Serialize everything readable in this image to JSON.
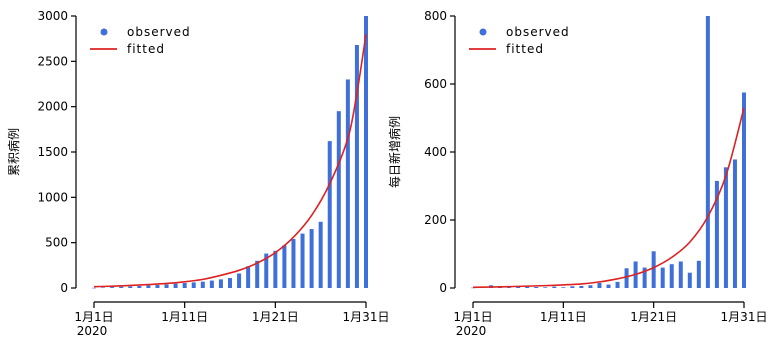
{
  "chart_data": [
    {
      "type": "bar",
      "ylabel": "累积病例",
      "ylim": [
        0,
        3000
      ],
      "yticks": [
        0,
        500,
        1000,
        1500,
        2000,
        2500,
        3000
      ],
      "xticks": [
        {
          "day": 1,
          "label": "1月1日",
          "sublabel": "2020"
        },
        {
          "day": 11,
          "label": "1月11日",
          "sublabel": ""
        },
        {
          "day": 21,
          "label": "1月21日",
          "sublabel": ""
        },
        {
          "day": 31,
          "label": "1月31日",
          "sublabel": ""
        }
      ],
      "legend": {
        "position": "top-left",
        "entries": [
          {
            "label": "observed",
            "kind": "marker"
          },
          {
            "label": "fitted",
            "kind": "line"
          }
        ]
      },
      "colors": {
        "bars": "#3f6fd8",
        "fit": "#dd2222"
      },
      "series": [
        {
          "name": "observed",
          "kind": "bar",
          "x": [
            1,
            2,
            3,
            4,
            5,
            6,
            7,
            8,
            9,
            10,
            11,
            12,
            13,
            14,
            15,
            16,
            17,
            18,
            19,
            20,
            21,
            22,
            23,
            24,
            25,
            26,
            27,
            28,
            29,
            30,
            31
          ],
          "values": [
            2,
            5,
            10,
            14,
            18,
            22,
            28,
            34,
            40,
            48,
            55,
            62,
            70,
            82,
            95,
            110,
            160,
            240,
            300,
            380,
            410,
            470,
            540,
            600,
            650,
            730,
            1620,
            1950,
            2300,
            2680,
            3000
          ]
        },
        {
          "name": "fitted",
          "kind": "line",
          "x": [
            1,
            3,
            5,
            7,
            9,
            11,
            13,
            15,
            17,
            19,
            21,
            23,
            25,
            27,
            29,
            30,
            31
          ],
          "values": [
            15,
            20,
            28,
            38,
            50,
            68,
            95,
            140,
            195,
            275,
            390,
            560,
            800,
            1150,
            1650,
            2150,
            2800
          ]
        }
      ]
    },
    {
      "type": "bar",
      "ylabel": "每日新增病例",
      "ylim": [
        0,
        800
      ],
      "yticks": [
        0,
        200,
        400,
        600,
        800
      ],
      "xticks": [
        {
          "day": 1,
          "label": "1月1日",
          "sublabel": "2020"
        },
        {
          "day": 11,
          "label": "1月11日",
          "sublabel": ""
        },
        {
          "day": 21,
          "label": "1月21日",
          "sublabel": ""
        },
        {
          "day": 31,
          "label": "1月31日",
          "sublabel": ""
        }
      ],
      "legend": {
        "position": "top-left",
        "entries": [
          {
            "label": "observed",
            "kind": "marker"
          },
          {
            "label": "fitted",
            "kind": "line"
          }
        ]
      },
      "colors": {
        "bars": "#3f6fd8",
        "fit": "#dd2222"
      },
      "series": [
        {
          "name": "observed",
          "kind": "bar",
          "x": [
            1,
            2,
            3,
            4,
            5,
            6,
            7,
            8,
            9,
            10,
            11,
            12,
            13,
            14,
            15,
            16,
            17,
            18,
            19,
            20,
            21,
            22,
            23,
            24,
            25,
            26,
            27,
            28,
            29,
            30,
            31
          ],
          "values": [
            1,
            3,
            8,
            6,
            2,
            5,
            4,
            3,
            2,
            4,
            2,
            5,
            6,
            8,
            15,
            10,
            18,
            58,
            78,
            60,
            108,
            60,
            70,
            78,
            45,
            80,
            800,
            315,
            355,
            378,
            575
          ]
        },
        {
          "name": "fitted",
          "kind": "line",
          "x": [
            1,
            5,
            9,
            13,
            15,
            17,
            19,
            21,
            23,
            25,
            27,
            29,
            31
          ],
          "values": [
            2,
            4,
            7,
            12,
            18,
            27,
            40,
            60,
            90,
            135,
            210,
            330,
            530
          ]
        }
      ]
    }
  ]
}
